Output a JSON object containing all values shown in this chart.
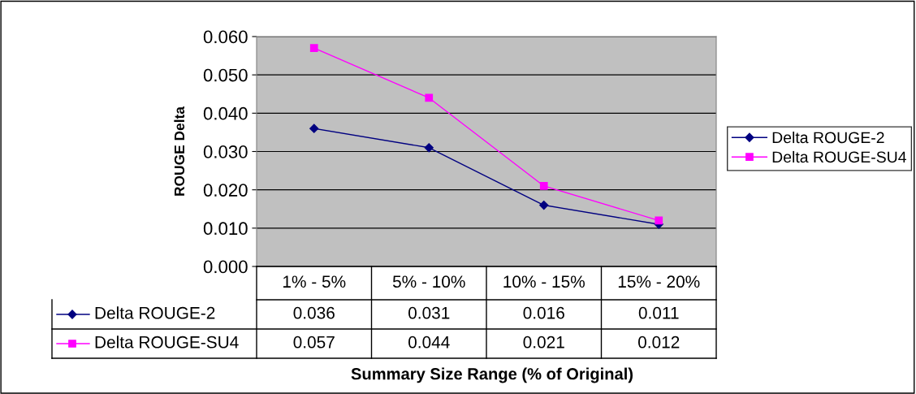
{
  "chart_data": {
    "type": "line",
    "xlabel": "Summary Size Range (% of Original)",
    "ylabel": "ROUGE Delta",
    "categories": [
      "1% - 5%",
      "5% - 10%",
      "10% - 15%",
      "15% - 20%"
    ],
    "series": [
      {
        "name": "Delta ROUGE-2",
        "color": "#000080",
        "marker": "diamond",
        "values": [
          0.036,
          0.031,
          0.016,
          0.011
        ]
      },
      {
        "name": "Delta ROUGE-SU4",
        "color": "#ff00ff",
        "marker": "square",
        "values": [
          0.057,
          0.044,
          0.021,
          0.012
        ]
      }
    ],
    "ylim": [
      0,
      0.06
    ],
    "yticks": [
      {
        "value": 0,
        "label": "0.000"
      },
      {
        "value": 0.01,
        "label": "0.010"
      },
      {
        "value": 0.02,
        "label": "0.020"
      },
      {
        "value": 0.03,
        "label": "0.030"
      },
      {
        "value": 0.04,
        "label": "0.040"
      },
      {
        "value": 0.05,
        "label": "0.050"
      },
      {
        "value": 0.06,
        "label": "0.060"
      }
    ],
    "grid": "y",
    "legend": "right",
    "data_labels": true
  }
}
